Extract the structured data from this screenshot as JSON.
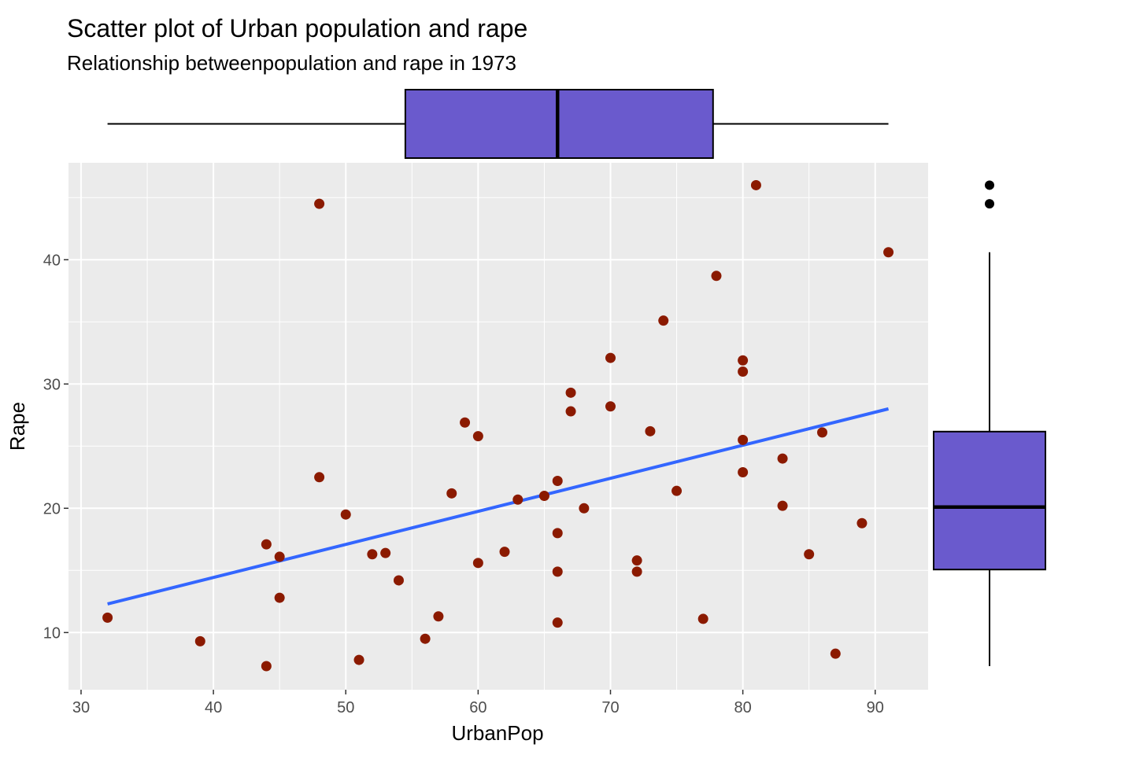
{
  "chart_data": {
    "type": "scatter",
    "title": "Scatter plot of Urban population and rape",
    "subtitle": "Relationship betweenpopulation and rape in 1973",
    "xlabel": "UrbanPop",
    "ylabel": "Rape",
    "xlim": [
      29.05,
      94.0
    ],
    "ylim": [
      5.4,
      47.8
    ],
    "xticks": [
      "30",
      "40",
      "50",
      "60",
      "70",
      "80",
      "90"
    ],
    "yticks": [
      "10",
      "20",
      "30",
      "40"
    ],
    "grid": true,
    "point_color": "#8B1A00",
    "points": [
      {
        "x": 58,
        "y": 21.2
      },
      {
        "x": 48,
        "y": 44.5
      },
      {
        "x": 80,
        "y": 31.0
      },
      {
        "x": 50,
        "y": 19.5
      },
      {
        "x": 91,
        "y": 40.6
      },
      {
        "x": 78,
        "y": 38.7
      },
      {
        "x": 77,
        "y": 11.1
      },
      {
        "x": 72,
        "y": 15.8
      },
      {
        "x": 80,
        "y": 31.9
      },
      {
        "x": 60,
        "y": 25.8
      },
      {
        "x": 83,
        "y": 20.2
      },
      {
        "x": 54,
        "y": 14.2
      },
      {
        "x": 83,
        "y": 24.0
      },
      {
        "x": 65,
        "y": 21.0
      },
      {
        "x": 57,
        "y": 11.3
      },
      {
        "x": 66,
        "y": 18.0
      },
      {
        "x": 52,
        "y": 16.3
      },
      {
        "x": 66,
        "y": 22.2
      },
      {
        "x": 51,
        "y": 7.8
      },
      {
        "x": 67,
        "y": 27.8
      },
      {
        "x": 85,
        "y": 16.3
      },
      {
        "x": 74,
        "y": 35.1
      },
      {
        "x": 66,
        "y": 14.9
      },
      {
        "x": 44,
        "y": 17.1
      },
      {
        "x": 70,
        "y": 28.2
      },
      {
        "x": 53,
        "y": 16.4
      },
      {
        "x": 62,
        "y": 16.5
      },
      {
        "x": 81,
        "y": 46.0
      },
      {
        "x": 56,
        "y": 9.5
      },
      {
        "x": 89,
        "y": 18.8
      },
      {
        "x": 70,
        "y": 32.1
      },
      {
        "x": 86,
        "y": 26.1
      },
      {
        "x": 45,
        "y": 16.1
      },
      {
        "x": 44,
        "y": 7.3
      },
      {
        "x": 75,
        "y": 21.4
      },
      {
        "x": 68,
        "y": 20.0
      },
      {
        "x": 67,
        "y": 29.3
      },
      {
        "x": 72,
        "y": 14.9
      },
      {
        "x": 87,
        "y": 8.3
      },
      {
        "x": 48,
        "y": 22.5
      },
      {
        "x": 45,
        "y": 12.8
      },
      {
        "x": 59,
        "y": 26.9
      },
      {
        "x": 80,
        "y": 25.5
      },
      {
        "x": 80,
        "y": 22.9
      },
      {
        "x": 32,
        "y": 11.2
      },
      {
        "x": 63,
        "y": 20.7
      },
      {
        "x": 73,
        "y": 26.2
      },
      {
        "x": 39,
        "y": 9.3
      },
      {
        "x": 66,
        "y": 10.8
      },
      {
        "x": 60,
        "y": 15.6
      }
    ],
    "trend_line": {
      "color": "#3366FF",
      "x": [
        32,
        91
      ],
      "y": [
        12.3,
        28.0
      ]
    },
    "box_fill": "#6A5ACD",
    "boxplot_x": {
      "min": 32,
      "q1": 54.5,
      "median": 66,
      "q3": 77.75,
      "max": 91
    },
    "boxplot_y": {
      "min": 7.3,
      "q1": 15.07,
      "median": 20.1,
      "q3": 26.17,
      "max": 40.6,
      "outliers": [
        44.5,
        46.0
      ]
    }
  }
}
